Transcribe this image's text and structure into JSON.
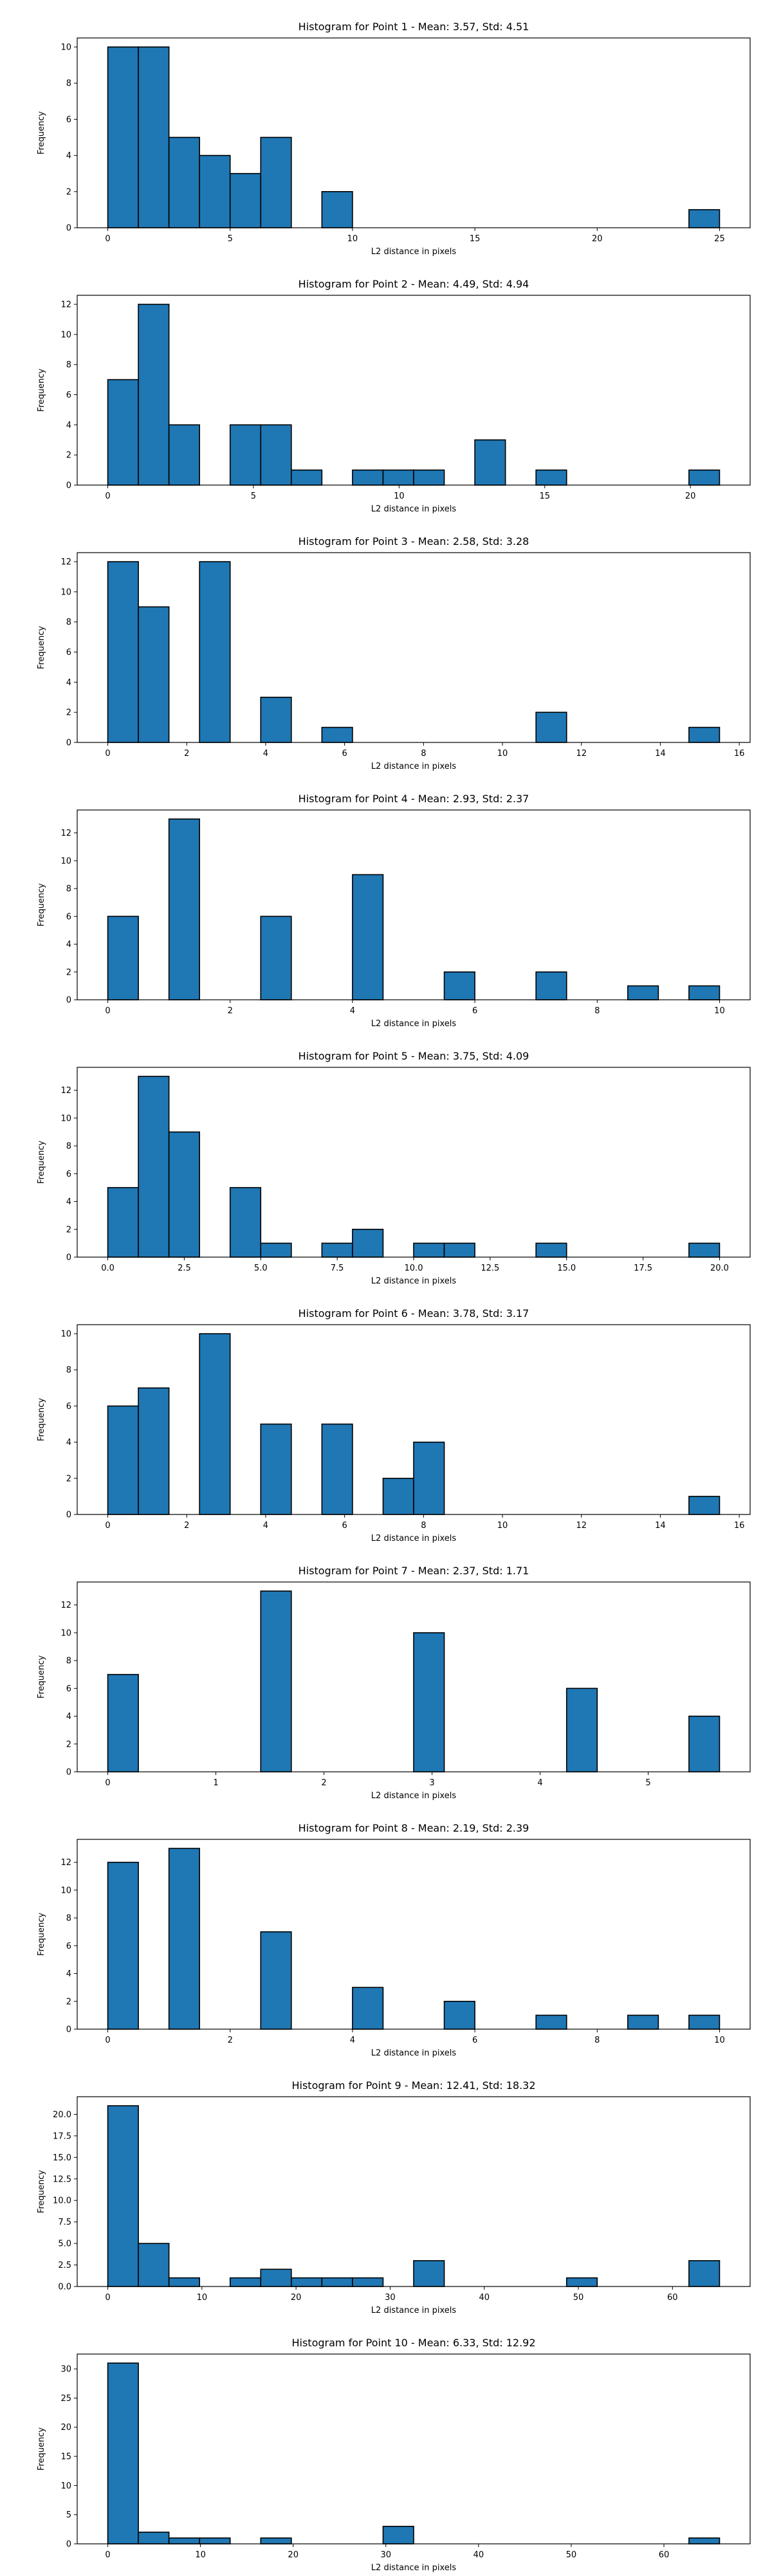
{
  "chart_data": [
    {
      "type": "bar",
      "title": "Histogram for Point 1 - Mean: 3.57, Std: 4.51",
      "xlabel": "L2 distance in pixels",
      "ylabel": "Frequency",
      "xlim": [
        -1.25,
        26.25
      ],
      "ylim": [
        0,
        10.5
      ],
      "xticks": [
        0,
        5,
        10,
        15,
        20,
        25
      ],
      "xtick_labels": [
        "0",
        "5",
        "10",
        "15",
        "20",
        "25"
      ],
      "yticks": [
        0,
        2,
        4,
        6,
        8,
        10
      ],
      "ytick_labels": [
        "0",
        "2",
        "4",
        "6",
        "8",
        "10"
      ],
      "bin_edges": [
        0.0,
        1.25,
        2.5,
        3.75,
        5.0,
        6.25,
        7.5,
        8.75,
        10.0,
        11.25,
        12.5,
        13.75,
        15.0,
        16.25,
        17.5,
        18.75,
        20.0,
        21.25,
        22.5,
        23.75,
        25.0
      ],
      "counts": [
        10,
        10,
        5,
        4,
        3,
        5,
        0,
        2,
        0,
        0,
        0,
        0,
        0,
        0,
        0,
        0,
        0,
        0,
        0,
        1
      ]
    },
    {
      "type": "bar",
      "title": "Histogram for Point 2 - Mean: 4.49, Std: 4.94",
      "xlabel": "L2 distance in pixels",
      "ylabel": "Frequency",
      "xlim": [
        -1.05,
        22.05
      ],
      "ylim": [
        0,
        12.6
      ],
      "xticks": [
        0,
        5,
        10,
        15,
        20
      ],
      "xtick_labels": [
        "0",
        "5",
        "10",
        "15",
        "20"
      ],
      "yticks": [
        0,
        2,
        4,
        6,
        8,
        10,
        12
      ],
      "ytick_labels": [
        "0",
        "2",
        "4",
        "6",
        "8",
        "10",
        "12"
      ],
      "bin_edges": [
        0.0,
        1.05,
        2.1,
        3.15,
        4.2,
        5.25,
        6.3,
        7.35,
        8.4,
        9.45,
        10.5,
        11.55,
        12.6,
        13.65,
        14.7,
        15.75,
        16.8,
        17.85,
        18.9,
        19.95,
        21.0
      ],
      "counts": [
        7,
        12,
        4,
        0,
        4,
        4,
        1,
        0,
        1,
        1,
        1,
        0,
        3,
        0,
        1,
        0,
        0,
        0,
        0,
        1
      ]
    },
    {
      "type": "bar",
      "title": "Histogram for Point 3 - Mean: 2.58, Std: 3.28",
      "xlabel": "L2 distance in pixels",
      "ylabel": "Frequency",
      "xlim": [
        -0.775,
        16.275
      ],
      "ylim": [
        0,
        12.6
      ],
      "xticks": [
        0,
        2,
        4,
        6,
        8,
        10,
        12,
        14,
        16
      ],
      "xtick_labels": [
        "0",
        "2",
        "4",
        "6",
        "8",
        "10",
        "12",
        "14",
        "16"
      ],
      "yticks": [
        0,
        2,
        4,
        6,
        8,
        10,
        12
      ],
      "ytick_labels": [
        "0",
        "2",
        "4",
        "6",
        "8",
        "10",
        "12"
      ],
      "bin_edges": [
        0.0,
        0.775,
        1.55,
        2.325,
        3.1,
        3.875,
        4.65,
        5.425,
        6.2,
        6.975,
        7.75,
        8.525,
        9.3,
        10.075,
        10.85,
        11.625,
        12.4,
        13.175,
        13.95,
        14.725,
        15.5
      ],
      "counts": [
        12,
        9,
        0,
        12,
        0,
        3,
        0,
        1,
        0,
        0,
        0,
        0,
        0,
        0,
        2,
        0,
        0,
        0,
        0,
        1
      ]
    },
    {
      "type": "bar",
      "title": "Histogram for Point 4 - Mean: 2.93, Std: 2.37",
      "xlabel": "L2 distance in pixels",
      "ylabel": "Frequency",
      "xlim": [
        -0.5,
        10.5
      ],
      "ylim": [
        0,
        13.65
      ],
      "xticks": [
        0,
        2,
        4,
        6,
        8,
        10
      ],
      "xtick_labels": [
        "0",
        "2",
        "4",
        "6",
        "8",
        "10"
      ],
      "yticks": [
        0,
        2,
        4,
        6,
        8,
        10,
        12
      ],
      "ytick_labels": [
        "0",
        "2",
        "4",
        "6",
        "8",
        "10",
        "12"
      ],
      "bin_edges": [
        0.0,
        0.5,
        1.0,
        1.5,
        2.0,
        2.5,
        3.0,
        3.5,
        4.0,
        4.5,
        5.0,
        5.5,
        6.0,
        6.5,
        7.0,
        7.5,
        8.0,
        8.5,
        9.0,
        9.5,
        10.0
      ],
      "counts": [
        6,
        0,
        13,
        0,
        0,
        6,
        0,
        0,
        9,
        0,
        0,
        2,
        0,
        0,
        2,
        0,
        0,
        1,
        0,
        1
      ]
    },
    {
      "type": "bar",
      "title": "Histogram for Point 5 - Mean: 3.75, Std: 4.09",
      "xlabel": "L2 distance in pixels",
      "ylabel": "Frequency",
      "xlim": [
        -1.0,
        21.0
      ],
      "ylim": [
        0,
        13.65
      ],
      "xticks": [
        0,
        2.5,
        5,
        7.5,
        10,
        12.5,
        15,
        17.5,
        20
      ],
      "xtick_labels": [
        "0.0",
        "2.5",
        "5.0",
        "7.5",
        "10.0",
        "12.5",
        "15.0",
        "17.5",
        "20.0"
      ],
      "yticks": [
        0,
        2,
        4,
        6,
        8,
        10,
        12
      ],
      "ytick_labels": [
        "0",
        "2",
        "4",
        "6",
        "8",
        "10",
        "12"
      ],
      "bin_edges": [
        0.0,
        1.0,
        2.0,
        3.0,
        4.0,
        5.0,
        6.0,
        7.0,
        8.0,
        9.0,
        10.0,
        11.0,
        12.0,
        13.0,
        14.0,
        15.0,
        16.0,
        17.0,
        18.0,
        19.0,
        20.0
      ],
      "counts": [
        5,
        13,
        9,
        0,
        5,
        1,
        0,
        1,
        2,
        0,
        1,
        1,
        0,
        0,
        1,
        0,
        0,
        0,
        0,
        1
      ]
    },
    {
      "type": "bar",
      "title": "Histogram for Point 6 - Mean: 3.78, Std: 3.17",
      "xlabel": "L2 distance in pixels",
      "ylabel": "Frequency",
      "xlim": [
        -0.775,
        16.275
      ],
      "ylim": [
        0,
        10.5
      ],
      "xticks": [
        0,
        2,
        4,
        6,
        8,
        10,
        12,
        14,
        16
      ],
      "xtick_labels": [
        "0",
        "2",
        "4",
        "6",
        "8",
        "10",
        "12",
        "14",
        "16"
      ],
      "yticks": [
        0,
        2,
        4,
        6,
        8,
        10
      ],
      "ytick_labels": [
        "0",
        "2",
        "4",
        "6",
        "8",
        "10"
      ],
      "bin_edges": [
        0.0,
        0.775,
        1.55,
        2.325,
        3.1,
        3.875,
        4.65,
        5.425,
        6.2,
        6.975,
        7.75,
        8.525,
        9.3,
        10.075,
        10.85,
        11.625,
        12.4,
        13.175,
        13.95,
        14.725,
        15.5
      ],
      "counts": [
        6,
        7,
        0,
        10,
        0,
        5,
        0,
        5,
        0,
        2,
        4,
        0,
        0,
        0,
        0,
        0,
        0,
        0,
        0,
        1
      ]
    },
    {
      "type": "bar",
      "title": "Histogram for Point 7 - Mean: 2.37, Std: 1.71",
      "xlabel": "L2 distance in pixels",
      "ylabel": "Frequency",
      "xlim": [
        -0.283,
        5.943
      ],
      "ylim": [
        0,
        13.65
      ],
      "xticks": [
        0,
        1,
        2,
        3,
        4,
        5
      ],
      "xtick_labels": [
        "0",
        "1",
        "2",
        "3",
        "4",
        "5"
      ],
      "yticks": [
        0,
        2,
        4,
        6,
        8,
        10,
        12
      ],
      "ytick_labels": [
        "0",
        "2",
        "4",
        "6",
        "8",
        "10",
        "12"
      ],
      "bin_edges": [
        0.0,
        0.283,
        0.566,
        0.849,
        1.132,
        1.415,
        1.698,
        1.981,
        2.264,
        2.547,
        2.83,
        3.113,
        3.396,
        3.679,
        3.962,
        4.245,
        4.528,
        4.811,
        5.094,
        5.377,
        5.66
      ],
      "counts": [
        7,
        0,
        0,
        0,
        0,
        13,
        0,
        0,
        0,
        0,
        10,
        0,
        0,
        0,
        0,
        6,
        0,
        0,
        0,
        4
      ]
    },
    {
      "type": "bar",
      "title": "Histogram for Point 8 - Mean: 2.19, Std: 2.39",
      "xlabel": "L2 distance in pixels",
      "ylabel": "Frequency",
      "xlim": [
        -0.5,
        10.5
      ],
      "ylim": [
        0,
        13.65
      ],
      "xticks": [
        0,
        2,
        4,
        6,
        8,
        10
      ],
      "xtick_labels": [
        "0",
        "2",
        "4",
        "6",
        "8",
        "10"
      ],
      "yticks": [
        0,
        2,
        4,
        6,
        8,
        10,
        12
      ],
      "ytick_labels": [
        "0",
        "2",
        "4",
        "6",
        "8",
        "10",
        "12"
      ],
      "bin_edges": [
        0.0,
        0.5,
        1.0,
        1.5,
        2.0,
        2.5,
        3.0,
        3.5,
        4.0,
        4.5,
        5.0,
        5.5,
        6.0,
        6.5,
        7.0,
        7.5,
        8.0,
        8.5,
        9.0,
        9.5,
        10.0
      ],
      "counts": [
        12,
        0,
        13,
        0,
        0,
        7,
        0,
        0,
        3,
        0,
        0,
        2,
        0,
        0,
        1,
        0,
        0,
        1,
        0,
        1
      ]
    },
    {
      "type": "bar",
      "title": "Histogram for Point 9 - Mean: 12.41, Std: 18.32",
      "xlabel": "L2 distance in pixels",
      "ylabel": "Frequency",
      "xlim": [
        -3.25,
        68.25
      ],
      "ylim": [
        0,
        22.05
      ],
      "xticks": [
        0,
        10,
        20,
        30,
        40,
        50,
        60
      ],
      "xtick_labels": [
        "0",
        "10",
        "20",
        "30",
        "40",
        "50",
        "60"
      ],
      "yticks": [
        0,
        2.5,
        5,
        7.5,
        10,
        12.5,
        15,
        17.5,
        20
      ],
      "ytick_labels": [
        "0.0",
        "2.5",
        "5.0",
        "7.5",
        "10.0",
        "12.5",
        "15.0",
        "17.5",
        "20.0"
      ],
      "bin_edges": [
        0.0,
        3.25,
        6.5,
        9.75,
        13.0,
        16.25,
        19.5,
        22.75,
        26.0,
        29.25,
        32.5,
        35.75,
        39.0,
        42.25,
        45.5,
        48.75,
        52.0,
        55.25,
        58.5,
        61.75,
        65.0
      ],
      "counts": [
        21,
        5,
        1,
        0,
        1,
        2,
        1,
        1,
        1,
        0,
        3,
        0,
        0,
        0,
        0,
        1,
        0,
        0,
        0,
        3
      ]
    },
    {
      "type": "bar",
      "title": "Histogram for Point 10 - Mean: 6.33, Std: 12.92",
      "xlabel": "L2 distance in pixels",
      "ylabel": "Frequency",
      "xlim": [
        -3.3,
        69.3
      ],
      "ylim": [
        0,
        32.55
      ],
      "xticks": [
        0,
        10,
        20,
        30,
        40,
        50,
        60
      ],
      "xtick_labels": [
        "0",
        "10",
        "20",
        "30",
        "40",
        "50",
        "60"
      ],
      "yticks": [
        0,
        5,
        10,
        15,
        20,
        25,
        30
      ],
      "ytick_labels": [
        "0",
        "5",
        "10",
        "15",
        "20",
        "25",
        "30"
      ],
      "bin_edges": [
        0.0,
        3.3,
        6.6,
        9.9,
        13.2,
        16.5,
        19.8,
        23.1,
        26.4,
        29.7,
        33.0,
        36.3,
        39.6,
        42.9,
        46.2,
        49.5,
        52.8,
        56.1,
        59.4,
        62.7,
        66.0
      ],
      "counts": [
        31,
        2,
        1,
        1,
        0,
        1,
        0,
        0,
        0,
        3,
        0,
        0,
        0,
        0,
        0,
        0,
        0,
        0,
        0,
        1
      ]
    }
  ],
  "style": {
    "bar_fill": "#1f77b4",
    "bar_edge": "#000000",
    "axis_color": "#000000",
    "background": "#ffffff"
  }
}
